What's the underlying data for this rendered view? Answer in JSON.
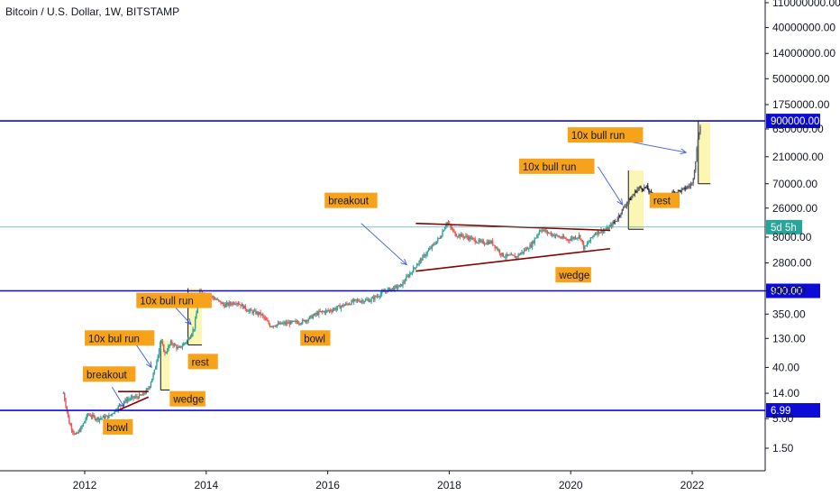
{
  "chart_data": {
    "type": "candlestick",
    "title": "Bitcoin / U.S. Dollar, 1W, BITSTAMP",
    "scale": "log",
    "y_ticks": [
      {
        "value": 110000000,
        "label": "110000000.00"
      },
      {
        "value": 40000000,
        "label": "40000000.00"
      },
      {
        "value": 14000000,
        "label": "14000000.00"
      },
      {
        "value": 5000000,
        "label": "5000000.00"
      },
      {
        "value": 1750000,
        "label": "1750000.00"
      },
      {
        "value": 650000,
        "label": "650000.00"
      },
      {
        "value": 210000,
        "label": "210000.00"
      },
      {
        "value": 70000,
        "label": "70000.00"
      },
      {
        "value": 26000,
        "label": "26000.00"
      },
      {
        "value": 8000,
        "label": "8000.00"
      },
      {
        "value": 2800,
        "label": "2800.00"
      },
      {
        "value": 900,
        "label": "900.00"
      },
      {
        "value": 350,
        "label": "350.00"
      },
      {
        "value": 130,
        "label": "130.00"
      },
      {
        "value": 40,
        "label": "40.00"
      },
      {
        "value": 14,
        "label": "14.00"
      },
      {
        "value": 5,
        "label": "5.00"
      },
      {
        "value": 1.5,
        "label": "1.50"
      }
    ],
    "x_ticks": [
      "2012",
      "2014",
      "2016",
      "2018",
      "2020",
      "2022"
    ],
    "x_tick_years": [
      2012,
      2014,
      2016,
      2018,
      2020,
      2022
    ],
    "price_path": [
      [
        2011.65,
        14
      ],
      [
        2011.75,
        4
      ],
      [
        2011.85,
        2.5
      ],
      [
        2011.95,
        3.5
      ],
      [
        2012.05,
        6
      ],
      [
        2012.2,
        5
      ],
      [
        2012.4,
        5.5
      ],
      [
        2012.55,
        8
      ],
      [
        2012.7,
        11
      ],
      [
        2012.85,
        12
      ],
      [
        2012.95,
        13
      ],
      [
        2013.05,
        17
      ],
      [
        2013.15,
        35
      ],
      [
        2013.25,
        120
      ],
      [
        2013.32,
        70
      ],
      [
        2013.42,
        110
      ],
      [
        2013.55,
        85
      ],
      [
        2013.7,
        125
      ],
      [
        2013.8,
        200
      ],
      [
        2013.9,
        900
      ],
      [
        2013.97,
        800
      ],
      [
        2014.1,
        700
      ],
      [
        2014.3,
        500
      ],
      [
        2014.5,
        580
      ],
      [
        2014.7,
        400
      ],
      [
        2014.9,
        350
      ],
      [
        2015.05,
        220
      ],
      [
        2015.3,
        240
      ],
      [
        2015.6,
        260
      ],
      [
        2015.85,
        370
      ],
      [
        2016.05,
        410
      ],
      [
        2016.45,
        600
      ],
      [
        2016.7,
        620
      ],
      [
        2016.95,
        900
      ],
      [
        2017.2,
        1100
      ],
      [
        2017.45,
        2500
      ],
      [
        2017.65,
        4500
      ],
      [
        2017.85,
        8000
      ],
      [
        2017.96,
        15000
      ],
      [
        2018.1,
        9000
      ],
      [
        2018.3,
        8000
      ],
      [
        2018.5,
        6500
      ],
      [
        2018.7,
        6500
      ],
      [
        2018.88,
        3800
      ],
      [
        2019.1,
        3600
      ],
      [
        2019.35,
        5800
      ],
      [
        2019.5,
        11000
      ],
      [
        2019.75,
        8500
      ],
      [
        2019.95,
        7200
      ],
      [
        2020.15,
        8500
      ],
      [
        2020.22,
        5000
      ],
      [
        2020.4,
        9500
      ],
      [
        2020.6,
        11000
      ],
      [
        2020.75,
        16000
      ],
      [
        2020.9,
        30000
      ],
      [
        2021.0,
        40000
      ],
      [
        2021.1,
        58000
      ],
      [
        2021.25,
        60000
      ],
      [
        2021.35,
        40000
      ],
      [
        2021.5,
        32000
      ],
      [
        2021.65,
        47000
      ],
      [
        2021.85,
        55000
      ],
      [
        2022.0,
        70000
      ],
      [
        2022.05,
        160000
      ],
      [
        2022.1,
        500000
      ],
      [
        2022.15,
        850000
      ]
    ],
    "levels": [
      {
        "value": 900000,
        "label": "900000.00",
        "color": "#0c0cd6"
      },
      {
        "value": 900,
        "label": "900.00",
        "color": "#0c0cd6"
      },
      {
        "value": 6.99,
        "label": "6.99",
        "color": "#0c0cd6"
      }
    ],
    "current_price": {
      "value": 12000,
      "label": "5d 5h",
      "color": "#26a69a"
    },
    "annotations": [
      {
        "text": "breakout",
        "x": 2011.97,
        "y": 30
      },
      {
        "text": "bowl",
        "x": 2012.3,
        "y": 3.5
      },
      {
        "text": "wedge",
        "x": 2013.4,
        "y": 11
      },
      {
        "text": "10x bul run",
        "x": 2012.0,
        "y": 130
      },
      {
        "text": "rest",
        "x": 2013.7,
        "y": 50
      },
      {
        "text": "10x bull run",
        "x": 2012.85,
        "y": 600
      },
      {
        "text": "bowl",
        "x": 2015.55,
        "y": 130
      },
      {
        "text": "breakout",
        "x": 2015.95,
        "y": 35000
      },
      {
        "text": "wedge",
        "x": 2019.75,
        "y": 1700
      },
      {
        "text": "10x bull run",
        "x": 2019.15,
        "y": 140000
      },
      {
        "text": "rest",
        "x": 2021.3,
        "y": 35000
      },
      {
        "text": "10x bull run",
        "x": 2019.95,
        "y": 500000
      }
    ],
    "trendlines": [
      {
        "from": [
          2012.55,
          7
        ],
        "to": [
          2013.05,
          12
        ]
      },
      {
        "from": [
          2012.55,
          15
        ],
        "to": [
          2013.05,
          15
        ]
      },
      {
        "from": [
          2017.45,
          2000
        ],
        "to": [
          2020.65,
          5000
        ]
      },
      {
        "from": [
          2017.45,
          14000
        ],
        "to": [
          2020.65,
          10500
        ]
      }
    ],
    "arrows": [
      {
        "from": [
          2012.45,
          18
        ],
        "to": [
          2012.65,
          8
        ]
      },
      {
        "from": [
          2012.85,
          100
        ],
        "to": [
          2013.1,
          40
        ]
      },
      {
        "from": [
          2013.5,
          450
        ],
        "to": [
          2013.75,
          230
        ]
      },
      {
        "from": [
          2016.55,
          14000
        ],
        "to": [
          2017.3,
          2600
        ]
      },
      {
        "from": [
          2020.45,
          140000
        ],
        "to": [
          2020.85,
          30000
        ]
      },
      {
        "from": [
          2020.9,
          400000
        ],
        "to": [
          2021.9,
          250000
        ]
      }
    ],
    "highlight_boxes": [
      {
        "x0": 2013.25,
        "x1": 2013.4,
        "y0": 16,
        "y1": 120
      },
      {
        "x0": 2013.7,
        "x1": 2013.93,
        "y0": 100,
        "y1": 1000
      },
      {
        "x0": 2020.95,
        "x1": 2021.2,
        "y0": 11000,
        "y1": 120000
      },
      {
        "x0": 2022.1,
        "x1": 2022.3,
        "y0": 70000,
        "y1": 900000
      }
    ]
  }
}
